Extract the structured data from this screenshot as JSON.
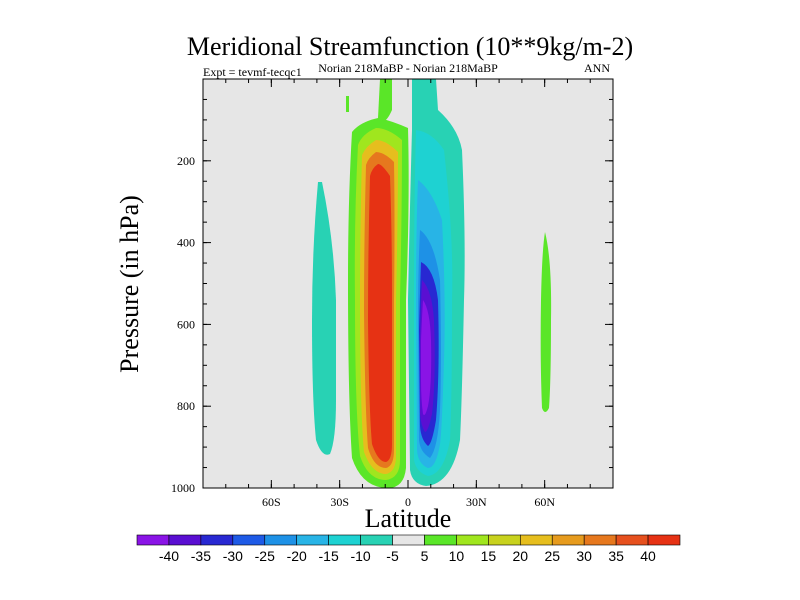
{
  "chart_data": {
    "type": "contour",
    "title": "Meridional Streamfunction (10**9kg/m-2)",
    "subtitle_left": "Expt = tevmf-tecqc1",
    "subtitle_center": "Norian 218MaBP - Norian 218MaBP",
    "subtitle_right": "ANN",
    "xlabel": "Latitude",
    "ylabel": "Pressure (in hPa)",
    "x_ticks": [
      "60S",
      "30S",
      "0",
      "30N",
      "60N"
    ],
    "y_ticks": [
      "200",
      "400",
      "600",
      "800",
      "1000"
    ],
    "ylim": [
      1000,
      0
    ],
    "colorbar_levels": [
      -40,
      -35,
      -30,
      -25,
      -20,
      -15,
      -10,
      -5,
      5,
      10,
      15,
      20,
      25,
      30,
      35,
      40
    ],
    "colorbar_labels": [
      "-40",
      "-35",
      "-30",
      "-25",
      "-20",
      "-15",
      "-10",
      "-5",
      "5",
      "10",
      "15",
      "20",
      "25",
      "30",
      "35",
      "40"
    ],
    "colorbar_colors": [
      "#8a14e6",
      "#5a0fd2",
      "#2828d2",
      "#1e5ae6",
      "#1e91e6",
      "#28b4e6",
      "#1ed2d2",
      "#28d2b4",
      "#e6e6e6",
      "#5ae628",
      "#a0e61e",
      "#c8d21e",
      "#e6be1e",
      "#e69b1e",
      "#e6781e",
      "#e6501e",
      "#e63214"
    ],
    "background_color": "#e6e6e6"
  }
}
